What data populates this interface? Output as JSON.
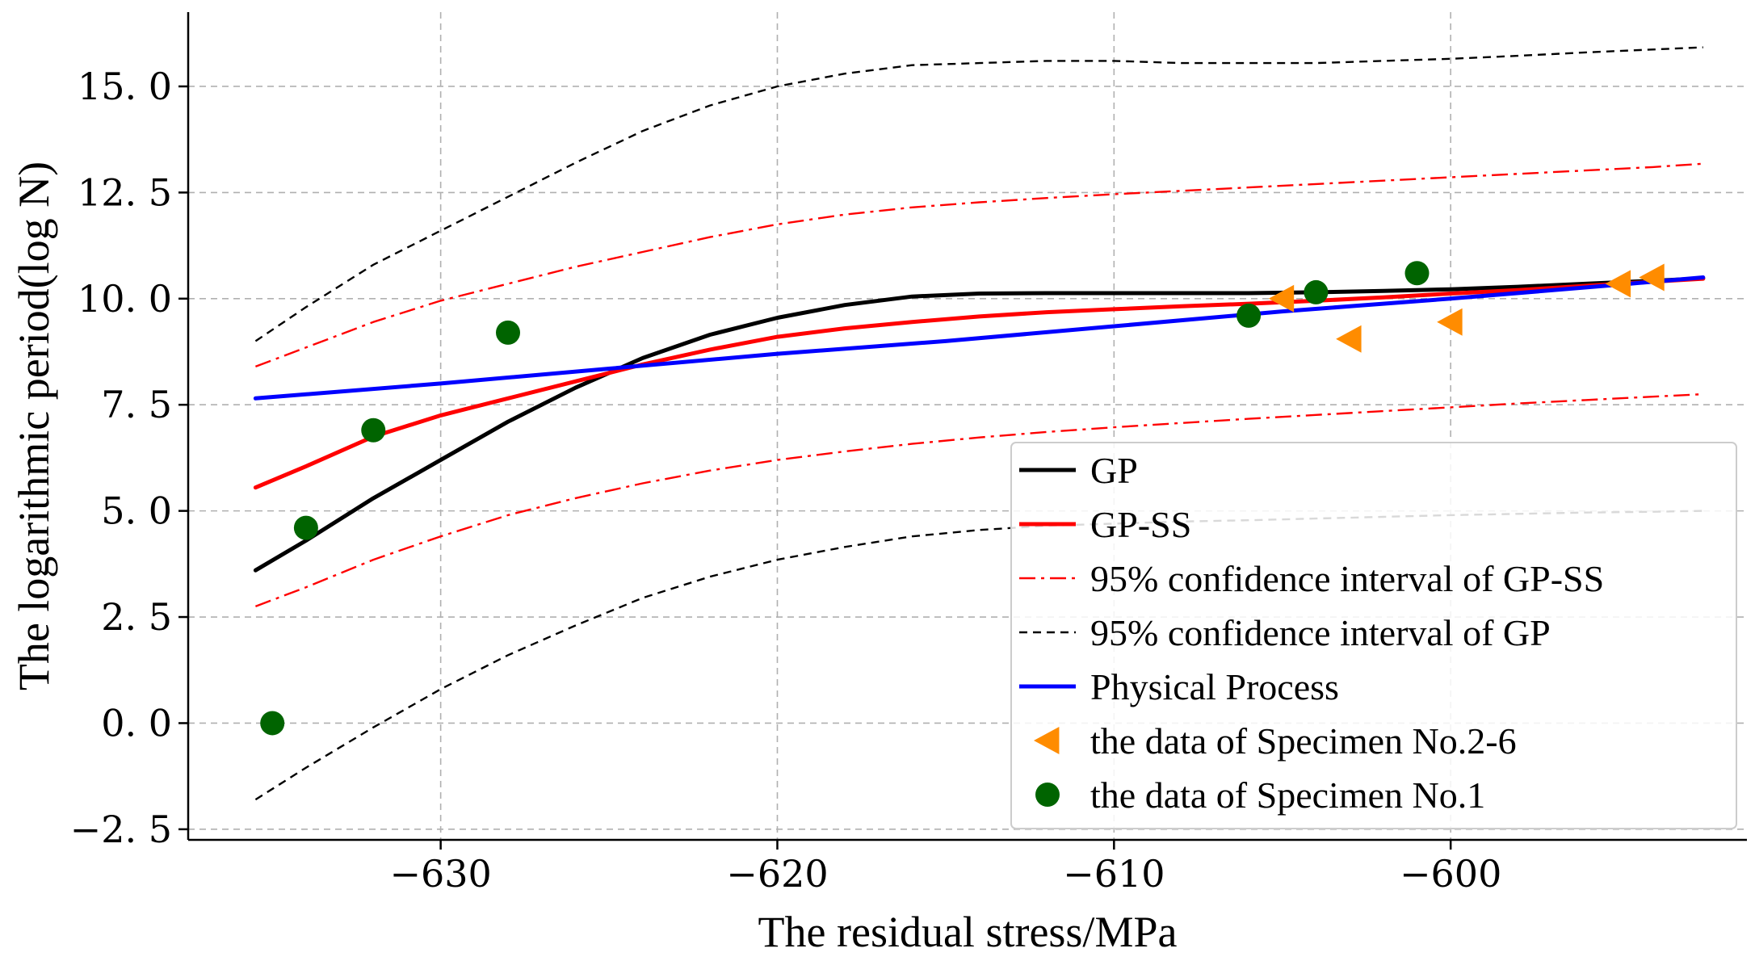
{
  "chart_data": {
    "type": "line",
    "title": "",
    "xlabel": "The residual stress/MPa",
    "ylabel": "The logarithmic period(log N)",
    "xlim": [
      -637.5,
      -591.2
    ],
    "ylim": [
      -2.75,
      16.75
    ],
    "xticks": [
      -630,
      -620,
      -610,
      -600
    ],
    "xtick_labels": [
      "−630",
      "−620",
      "−610",
      "−600"
    ],
    "yticks": [
      -2.5,
      0.0,
      2.5,
      5.0,
      7.5,
      10.0,
      12.5,
      15.0
    ],
    "ytick_labels": [
      "−2. 5",
      "0. 0",
      "2. 5",
      "5. 0",
      "7. 5",
      "10. 0",
      "12. 5",
      "15. 0"
    ],
    "grid": true,
    "legend_position": "lower-right",
    "series": [
      {
        "name": " GP",
        "kind": "line",
        "color": "#000000",
        "dash": "solid",
        "x": [
          -635.5,
          -634,
          -632,
          -630,
          -628,
          -626,
          -624,
          -622,
          -620,
          -618,
          -616,
          -614,
          -612,
          -610,
          -608,
          -606,
          -604,
          -602,
          -600,
          -598,
          -596,
          -594,
          -592.5
        ],
        "y": [
          3.6,
          4.3,
          5.3,
          6.2,
          7.1,
          7.9,
          8.6,
          9.15,
          9.55,
          9.85,
          10.05,
          10.12,
          10.13,
          10.13,
          10.13,
          10.13,
          10.15,
          10.18,
          10.22,
          10.28,
          10.35,
          10.42,
          10.48
        ]
      },
      {
        "name": "GP-SS",
        "kind": "line",
        "color": "#ff0000",
        "dash": "solid",
        "x": [
          -635.5,
          -634,
          -632,
          -630,
          -628,
          -626,
          -624,
          -622,
          -620,
          -618,
          -616,
          -614,
          -612,
          -610,
          -608,
          -606,
          -604,
          -602,
          -600,
          -598,
          -596,
          -594,
          -592.5
        ],
        "y": [
          5.55,
          6.05,
          6.75,
          7.25,
          7.65,
          8.05,
          8.45,
          8.8,
          9.1,
          9.3,
          9.45,
          9.58,
          9.68,
          9.75,
          9.82,
          9.88,
          9.95,
          10.03,
          10.12,
          10.2,
          10.3,
          10.4,
          10.47
        ]
      },
      {
        "name": "95% confidence interval of GP-SS",
        "kind": "line",
        "color": "#ff0000",
        "dash": "dashdot",
        "segments": [
          {
            "x": [
              -635.5,
              -634,
              -632,
              -630,
              -628,
              -626,
              -624,
              -622,
              -620,
              -618,
              -616,
              -614,
              -612,
              -610,
              -608,
              -606,
              -604,
              -602,
              -600,
              -598,
              -596,
              -594,
              -592.5
            ],
            "y": [
              8.4,
              8.85,
              9.45,
              9.95,
              10.35,
              10.75,
              11.1,
              11.45,
              11.75,
              11.98,
              12.15,
              12.27,
              12.37,
              12.46,
              12.54,
              12.62,
              12.7,
              12.78,
              12.86,
              12.94,
              13.02,
              13.1,
              13.18
            ]
          },
          {
            "x": [
              -635.5,
              -634,
              -632,
              -630,
              -628,
              -626,
              -624,
              -622,
              -620,
              -618,
              -616,
              -614,
              -612,
              -610,
              -608,
              -606,
              -604,
              -602,
              -600,
              -598,
              -596,
              -594,
              -592.5
            ],
            "y": [
              2.75,
              3.2,
              3.85,
              4.4,
              4.9,
              5.3,
              5.65,
              5.95,
              6.2,
              6.4,
              6.58,
              6.73,
              6.86,
              6.97,
              7.07,
              7.17,
              7.26,
              7.35,
              7.44,
              7.53,
              7.61,
              7.69,
              7.75
            ]
          }
        ]
      },
      {
        "name": "95% confidence interval of GP",
        "kind": "line",
        "color": "#000000",
        "dash": "dashed",
        "segments": [
          {
            "x": [
              -635.5,
              -634,
              -632,
              -630,
              -628,
              -626,
              -624,
              -622,
              -620,
              -618,
              -616,
              -614,
              -612,
              -610,
              -608,
              -606,
              -604,
              -602,
              -600,
              -598,
              -596,
              -594,
              -592.5
            ],
            "y": [
              9.0,
              9.8,
              10.8,
              11.6,
              12.4,
              13.2,
              13.95,
              14.55,
              15.0,
              15.3,
              15.5,
              15.55,
              15.6,
              15.6,
              15.55,
              15.55,
              15.55,
              15.6,
              15.65,
              15.72,
              15.8,
              15.87,
              15.92
            ]
          },
          {
            "x": [
              -635.5,
              -634,
              -632,
              -630,
              -628,
              -626,
              -624,
              -622,
              -620,
              -618,
              -616,
              -614,
              -612,
              -610,
              -608,
              -606,
              -604,
              -602,
              -600,
              -598,
              -596,
              -594,
              -592.5
            ],
            "y": [
              -1.8,
              -1.05,
              -0.1,
              0.8,
              1.6,
              2.3,
              2.95,
              3.45,
              3.85,
              4.15,
              4.4,
              4.55,
              4.65,
              4.7,
              4.75,
              4.78,
              4.82,
              4.86,
              4.9,
              4.93,
              4.96,
              4.98,
              5.0
            ]
          }
        ]
      },
      {
        "name": "Physical Process",
        "kind": "line",
        "color": "#0000ff",
        "dash": "solid",
        "x": [
          -635.5,
          -630,
          -625,
          -620,
          -615,
          -610,
          -605,
          -600,
          -595,
          -592.5
        ],
        "y": [
          7.65,
          8.0,
          8.35,
          8.7,
          9.0,
          9.35,
          9.7,
          10.0,
          10.33,
          10.5
        ]
      },
      {
        "name": "the data of Specimen No.2-6",
        "kind": "scatter",
        "marker": "triangle-left",
        "color": "#ff8c00",
        "x": [
          -605,
          -603,
          -600,
          -595,
          -594
        ],
        "y": [
          10.0,
          9.05,
          9.45,
          10.35,
          10.5
        ]
      },
      {
        "name": "the data of Specimen No.1",
        "kind": "scatter",
        "marker": "circle",
        "color": "#006400",
        "x": [
          -635,
          -634,
          -632,
          -628,
          -606,
          -604,
          -601
        ],
        "y": [
          0.0,
          4.6,
          6.9,
          9.2,
          9.6,
          10.15,
          10.6
        ]
      }
    ]
  }
}
